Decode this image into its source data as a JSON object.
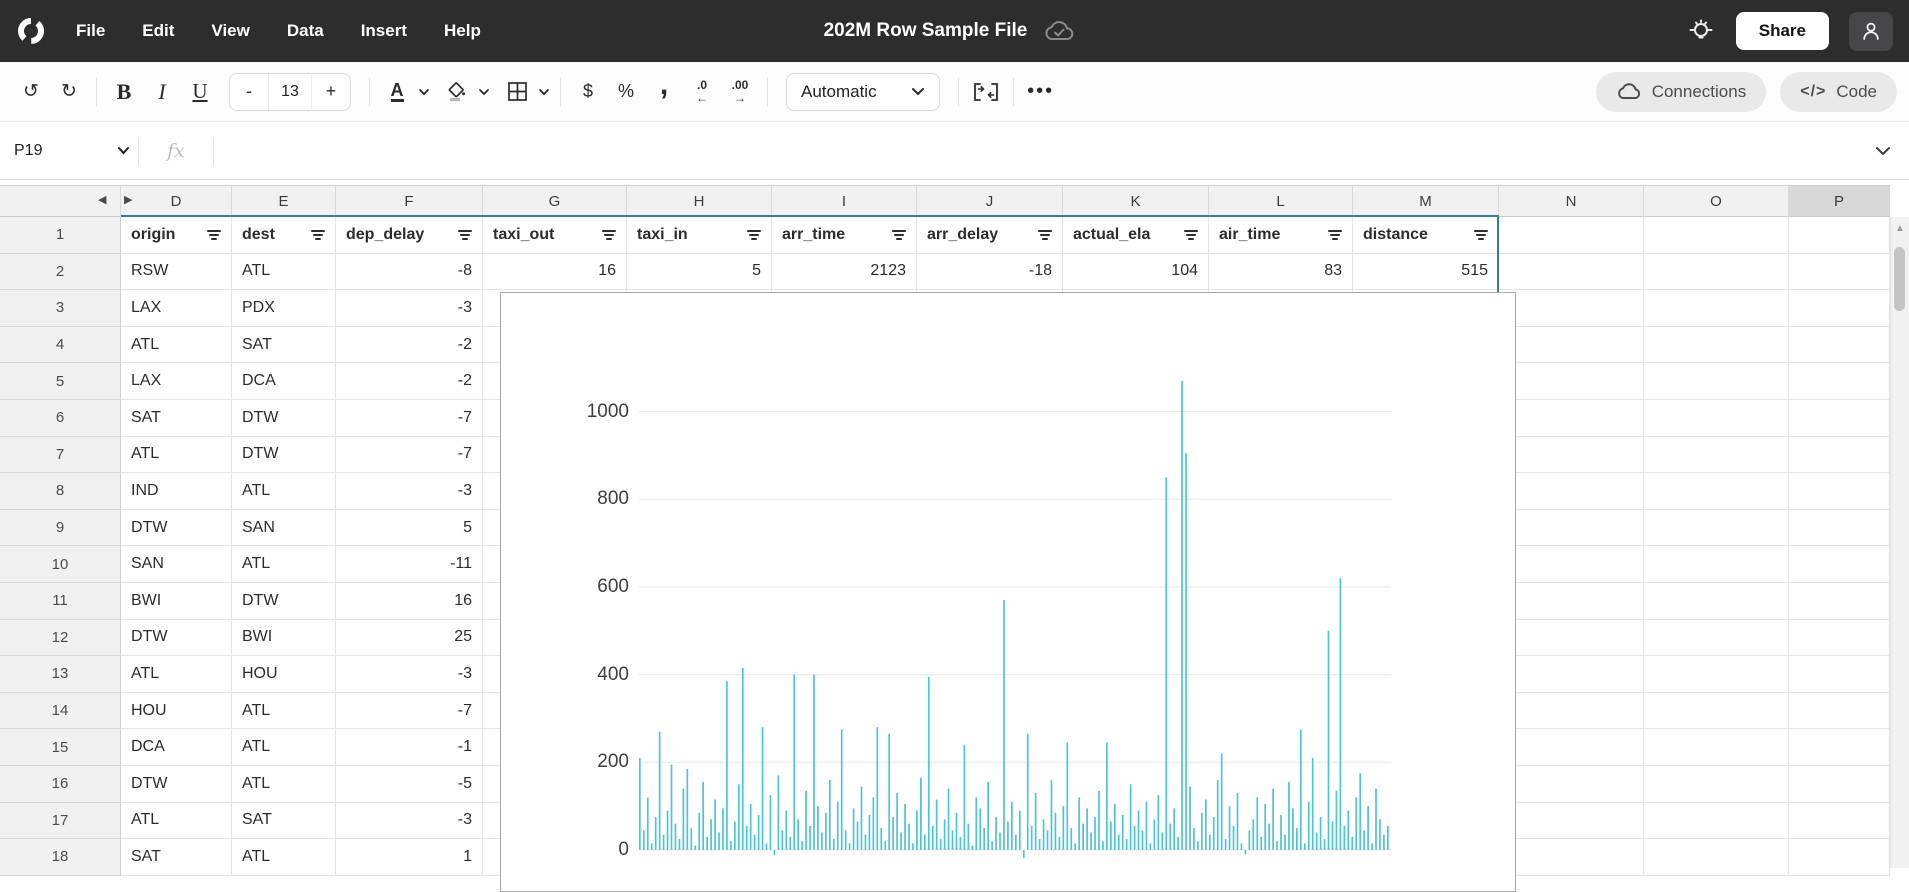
{
  "menu_bar": {
    "items": [
      "File",
      "Edit",
      "View",
      "Data",
      "Insert",
      "Help"
    ],
    "title": "202M Row Sample File",
    "share_label": "Share"
  },
  "toolbar": {
    "bold_label": "B",
    "italic_label": "I",
    "underline_label": "U",
    "minus_label": "-",
    "font_size": "13",
    "plus_label": "+",
    "text_color_label": "A",
    "currency_label": "$",
    "percent_label": "%",
    "comma_label": ",",
    "dec_decrease_top": ".0",
    "dec_decrease_arrow": "←",
    "dec_increase_top": ".00",
    "dec_increase_arrow": "→",
    "number_format": "Automatic",
    "more_label": "•••",
    "connections_label": "Connections",
    "code_icon": "</>",
    "code_label": "Code"
  },
  "formula_bar": {
    "cell_ref": "P19",
    "fx_label": "fx",
    "formula_value": ""
  },
  "grid": {
    "visible_columns": [
      "D",
      "E",
      "F",
      "G",
      "H",
      "I",
      "J",
      "K",
      "L",
      "M",
      "N",
      "O",
      "P"
    ],
    "active_column": "P",
    "active_cell": "P19",
    "header_row": {
      "num": "1",
      "cells": [
        "origin",
        "dest",
        "dep_delay",
        "taxi_out",
        "taxi_in",
        "arr_time",
        "arr_delay",
        "actual_ela",
        "air_time",
        "distance",
        "",
        "",
        ""
      ]
    },
    "rows": [
      {
        "num": "2",
        "cells": [
          "RSW",
          "ATL",
          "-8",
          "16",
          "5",
          "2123",
          "-18",
          "104",
          "83",
          "515",
          "",
          "",
          ""
        ]
      },
      {
        "num": "3",
        "cells": [
          "LAX",
          "PDX",
          "-3",
          "",
          "",
          "",
          "",
          "",
          "",
          "",
          "",
          "",
          ""
        ]
      },
      {
        "num": "4",
        "cells": [
          "ATL",
          "SAT",
          "-2",
          "",
          "",
          "",
          "",
          "",
          "",
          "",
          "",
          "",
          ""
        ]
      },
      {
        "num": "5",
        "cells": [
          "LAX",
          "DCA",
          "-2",
          "",
          "",
          "",
          "",
          "",
          "",
          "",
          "",
          "",
          ""
        ]
      },
      {
        "num": "6",
        "cells": [
          "SAT",
          "DTW",
          "-7",
          "",
          "",
          "",
          "",
          "",
          "",
          "",
          "",
          "",
          ""
        ]
      },
      {
        "num": "7",
        "cells": [
          "ATL",
          "DTW",
          "-7",
          "",
          "",
          "",
          "",
          "",
          "",
          "",
          "",
          "",
          ""
        ]
      },
      {
        "num": "8",
        "cells": [
          "IND",
          "ATL",
          "-3",
          "",
          "",
          "",
          "",
          "",
          "",
          "",
          "",
          "",
          ""
        ]
      },
      {
        "num": "9",
        "cells": [
          "DTW",
          "SAN",
          "5",
          "",
          "",
          "",
          "",
          "",
          "",
          "",
          "",
          "",
          ""
        ]
      },
      {
        "num": "10",
        "cells": [
          "SAN",
          "ATL",
          "-11",
          "",
          "",
          "",
          "",
          "",
          "",
          "",
          "",
          "",
          ""
        ]
      },
      {
        "num": "11",
        "cells": [
          "BWI",
          "DTW",
          "16",
          "",
          "",
          "",
          "",
          "",
          "",
          "",
          "",
          "",
          ""
        ]
      },
      {
        "num": "12",
        "cells": [
          "DTW",
          "BWI",
          "25",
          "",
          "",
          "",
          "",
          "",
          "",
          "",
          "",
          "",
          ""
        ]
      },
      {
        "num": "13",
        "cells": [
          "ATL",
          "HOU",
          "-3",
          "",
          "",
          "",
          "",
          "",
          "",
          "",
          "",
          "",
          ""
        ]
      },
      {
        "num": "14",
        "cells": [
          "HOU",
          "ATL",
          "-7",
          "",
          "",
          "",
          "",
          "",
          "",
          "",
          "",
          "",
          ""
        ]
      },
      {
        "num": "15",
        "cells": [
          "DCA",
          "ATL",
          "-1",
          "",
          "",
          "",
          "",
          "",
          "",
          "",
          "",
          "",
          ""
        ]
      },
      {
        "num": "16",
        "cells": [
          "DTW",
          "ATL",
          "-5",
          "",
          "",
          "",
          "",
          "",
          "",
          "",
          "",
          "",
          ""
        ]
      },
      {
        "num": "17",
        "cells": [
          "ATL",
          "SAT",
          "-3",
          "",
          "",
          "",
          "",
          "",
          "",
          "",
          "",
          "",
          ""
        ]
      },
      {
        "num": "18",
        "cells": [
          "SAT",
          "ATL",
          "1",
          "",
          "",
          "",
          "",
          "",
          "",
          "",
          "",
          "",
          ""
        ]
      }
    ]
  },
  "chart_data": {
    "type": "line",
    "title": "",
    "xlabel": "",
    "ylabel": "",
    "ylim": [
      0,
      1100
    ],
    "yticks": [
      0,
      200,
      400,
      600,
      800,
      1000
    ],
    "grid": true,
    "legend": false,
    "series_color": "#4fc4d3",
    "values": [
      210,
      45,
      120,
      15,
      75,
      270,
      35,
      90,
      195,
      60,
      25,
      140,
      185,
      50,
      10,
      85,
      155,
      30,
      70,
      115,
      40,
      95,
      385,
      20,
      65,
      150,
      415,
      55,
      105,
      35,
      80,
      280,
      15,
      125,
      -12,
      170,
      45,
      90,
      30,
      400,
      70,
      20,
      135,
      55,
      400,
      100,
      40,
      85,
      160,
      25,
      110,
      275,
      45,
      15,
      95,
      65,
      145,
      35,
      80,
      120,
      280,
      50,
      20,
      265,
      75,
      130,
      40,
      105,
      60,
      15,
      90,
      165,
      35,
      395,
      55,
      115,
      25,
      70,
      140,
      45,
      85,
      30,
      240,
      60,
      10,
      120,
      95,
      50,
      155,
      20,
      75,
      40,
      570,
      65,
      110,
      35,
      90,
      -18,
      265,
      55,
      130,
      25,
      70,
      45,
      160,
      85,
      30,
      100,
      245,
      50,
      15,
      120,
      60,
      95,
      40,
      75,
      135,
      20,
      245,
      65,
      105,
      35,
      80,
      25,
      150,
      55,
      90,
      45,
      110,
      15,
      70,
      125,
      40,
      850,
      60,
      95,
      30,
      1070,
      905,
      145,
      50,
      20,
      85,
      115,
      35,
      75,
      160,
      220,
      25,
      100,
      55,
      130,
      15,
      -10,
      45,
      70,
      120,
      30,
      105,
      60,
      140,
      20,
      80,
      35,
      155,
      95,
      50,
      275,
      15,
      110,
      210,
      40,
      75,
      25,
      500,
      65,
      135,
      620,
      55,
      90,
      30,
      120,
      175,
      45,
      100,
      15,
      140,
      70,
      35,
      55
    ]
  }
}
